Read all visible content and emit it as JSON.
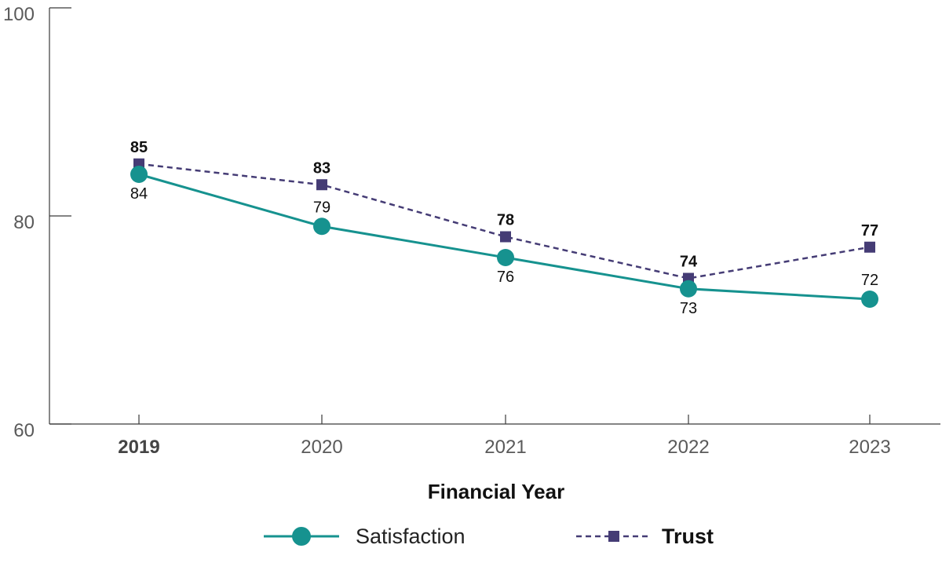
{
  "chart_data": {
    "type": "line",
    "x": [
      "2019",
      "2020",
      "2021",
      "2022",
      "2023"
    ],
    "xlabel": "Financial Year",
    "ylabel": "",
    "ylim": [
      60,
      100
    ],
    "yticks": [
      "60",
      "80",
      "100"
    ],
    "bold_x_tick": "2019",
    "grid": false,
    "legend_position": "bottom",
    "series": [
      {
        "name": "Satisfaction",
        "values": [
          84,
          79,
          76,
          73,
          72
        ],
        "color": "#16928f",
        "marker": "circle",
        "line": "solid"
      },
      {
        "name": "Trust",
        "values": [
          85,
          83,
          78,
          74,
          77
        ],
        "color": "#453c75",
        "marker": "square",
        "line": "dashed"
      }
    ],
    "data_labels": {
      "Satisfaction": [
        "84",
        "79",
        "76",
        "73",
        "72"
      ],
      "Trust": [
        "85",
        "83",
        "78",
        "74",
        "77"
      ]
    }
  }
}
